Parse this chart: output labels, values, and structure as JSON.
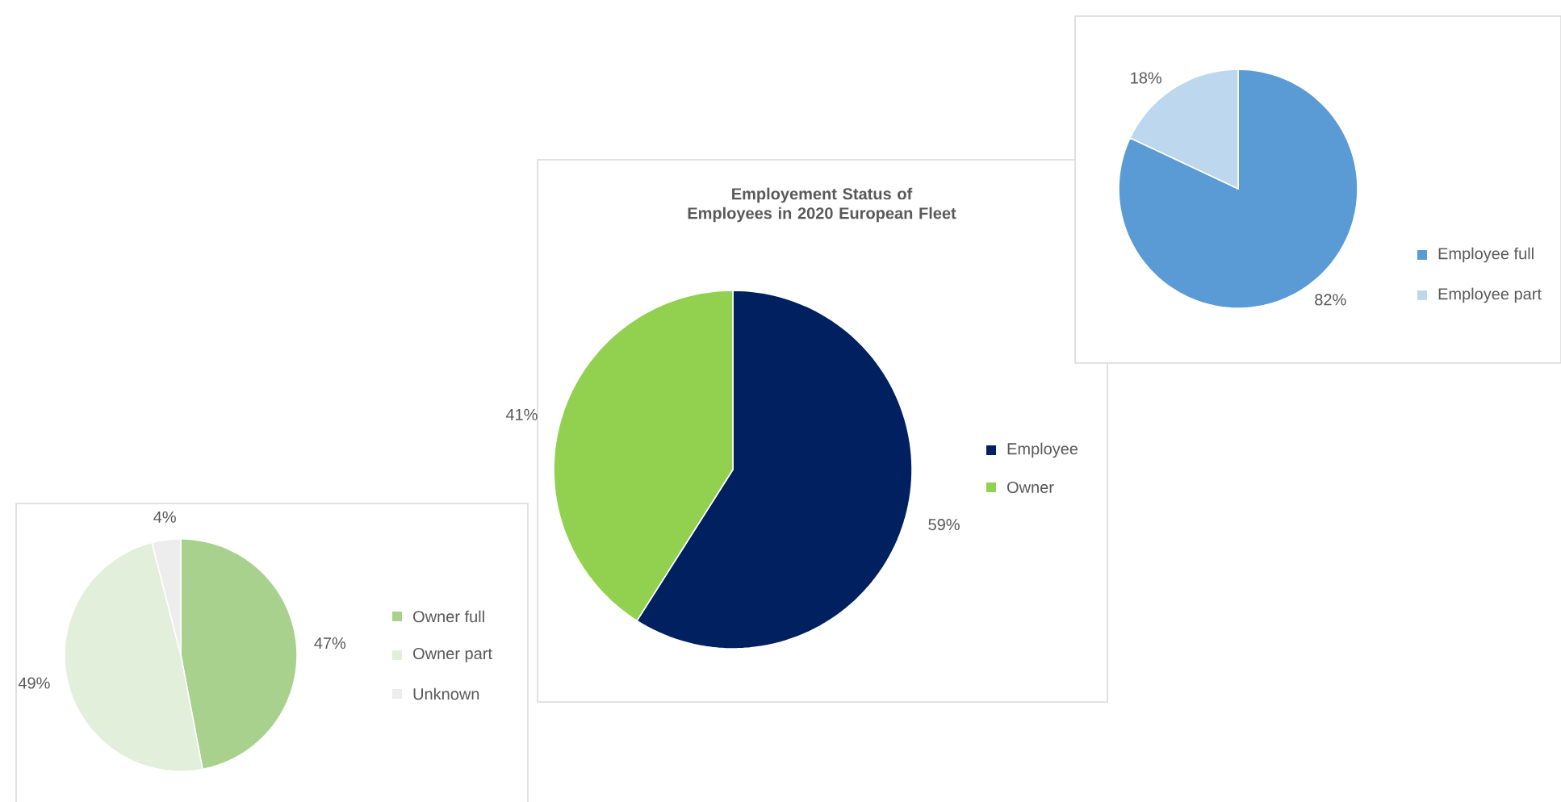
{
  "chart_data": [
    {
      "type": "pie",
      "categories": [
        "Employee full",
        "Employee part"
      ],
      "values": [
        82,
        18
      ],
      "colors": [
        "#5b9bd5",
        "#bdd7ee"
      ],
      "value_labels": [
        "82%",
        "18%"
      ],
      "legend": "right"
    },
    {
      "type": "pie",
      "title": "Employement Status of Employees in 2020 European Fleet",
      "categories": [
        "Employee",
        "Owner"
      ],
      "values": [
        59,
        41
      ],
      "colors": [
        "#002060",
        "#92d050"
      ],
      "value_labels": [
        "59%",
        "41%"
      ],
      "legend": "right"
    },
    {
      "type": "pie",
      "categories": [
        "Owner full",
        "Owner part",
        "Unknown"
      ],
      "values": [
        47,
        49,
        4
      ],
      "colors": [
        "#a9d18e",
        "#e2efda",
        "#ededed"
      ],
      "value_labels": [
        "47%",
        "49%",
        "4%"
      ],
      "legend": "right"
    }
  ]
}
